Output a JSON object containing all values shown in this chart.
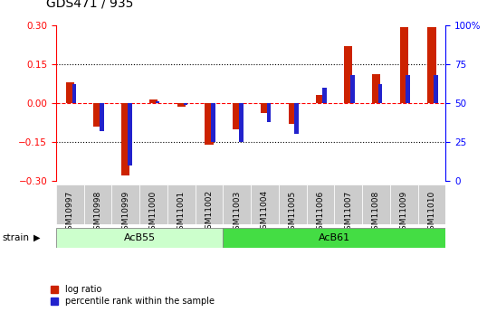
{
  "title": "GDS471 / 935",
  "samples": [
    "GSM10997",
    "GSM10998",
    "GSM10999",
    "GSM11000",
    "GSM11001",
    "GSM11002",
    "GSM11003",
    "GSM11004",
    "GSM11005",
    "GSM11006",
    "GSM11007",
    "GSM11008",
    "GSM11009",
    "GSM11010"
  ],
  "log_ratio": [
    0.08,
    -0.09,
    -0.28,
    0.015,
    -0.015,
    -0.162,
    -0.1,
    -0.04,
    -0.08,
    0.03,
    0.22,
    0.11,
    0.29,
    0.29
  ],
  "percentile_rank": [
    62,
    32,
    10,
    51,
    49,
    25,
    25,
    38,
    30,
    60,
    68,
    62,
    68,
    68
  ],
  "acb55_count": 6,
  "acb61_count": 8,
  "ylim_left": [
    -0.3,
    0.3
  ],
  "ylim_right": [
    0,
    100
  ],
  "yticks_left": [
    -0.3,
    -0.15,
    0.0,
    0.15,
    0.3
  ],
  "yticks_right": [
    0,
    25,
    50,
    75,
    100
  ],
  "ytick_right_labels": [
    "0",
    "25",
    "50",
    "75",
    "100%"
  ],
  "hlines_dotted": [
    -0.15,
    0.15
  ],
  "hline_dashed_red": 0.0,
  "bar_color_red": "#cc2200",
  "bar_color_blue": "#2222cc",
  "legend_items": [
    "log ratio",
    "percentile rank within the sample"
  ],
  "acb55_label": "AcB55",
  "acb61_label": "AcB61",
  "acb55_color": "#ccffcc",
  "acb61_color": "#44dd44",
  "strain_label": "strain",
  "fig_bg": "#ffffff",
  "plot_bg": "#ffffff",
  "xtick_bg": "#cccccc"
}
